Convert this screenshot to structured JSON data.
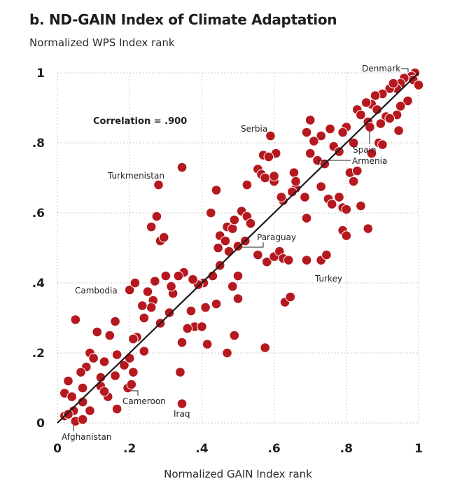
{
  "chart_data": {
    "type": "scatter",
    "title": "b. ND-GAIN Index of Climate Adaptation",
    "ylabel": "Normalized WPS Index rank",
    "xlabel": "Normalized GAIN Index rank",
    "xlim": [
      0,
      1
    ],
    "ylim": [
      0,
      1
    ],
    "grid": true,
    "x_ticks": [
      {
        "v": 0,
        "label": "0"
      },
      {
        "v": 0.2,
        "label": ".2"
      },
      {
        "v": 0.4,
        "label": ".4"
      },
      {
        "v": 0.6,
        "label": ".6"
      },
      {
        "v": 0.8,
        "label": ".8"
      },
      {
        "v": 1,
        "label": "1"
      }
    ],
    "y_ticks": [
      {
        "v": 0,
        "label": "0"
      },
      {
        "v": 0.2,
        "label": ".2"
      },
      {
        "v": 0.4,
        "label": ".4"
      },
      {
        "v": 0.6,
        "label": ".6"
      },
      {
        "v": 0.8,
        "label": ".8"
      },
      {
        "v": 1,
        "label": "1"
      }
    ],
    "correlation_text": "Correlation = .900",
    "fit_line": {
      "x": [
        0,
        1
      ],
      "y": [
        0,
        1
      ]
    },
    "point_color": "#b5191f",
    "points": [
      [
        0.99,
        1.0
      ],
      [
        0.98,
        0.99
      ],
      [
        0.985,
        0.98
      ],
      [
        1.0,
        0.965
      ],
      [
        0.96,
        0.985
      ],
      [
        0.95,
        0.97
      ],
      [
        0.94,
        0.955
      ],
      [
        0.92,
        0.955
      ],
      [
        0.93,
        0.97
      ],
      [
        0.97,
        0.92
      ],
      [
        0.9,
        0.94
      ],
      [
        0.88,
        0.935
      ],
      [
        0.87,
        0.91
      ],
      [
        0.885,
        0.895
      ],
      [
        0.855,
        0.915
      ],
      [
        0.83,
        0.895
      ],
      [
        0.95,
        0.905
      ],
      [
        0.94,
        0.88
      ],
      [
        0.91,
        0.875
      ],
      [
        0.92,
        0.87
      ],
      [
        0.895,
        0.855
      ],
      [
        0.86,
        0.86
      ],
      [
        0.865,
        0.845
      ],
      [
        0.84,
        0.88
      ],
      [
        0.945,
        0.835
      ],
      [
        0.89,
        0.8
      ],
      [
        0.9,
        0.795
      ],
      [
        0.8,
        0.845
      ],
      [
        0.79,
        0.83
      ],
      [
        0.73,
        0.82
      ],
      [
        0.755,
        0.84
      ],
      [
        0.71,
        0.805
      ],
      [
        0.7,
        0.77
      ],
      [
        0.72,
        0.75
      ],
      [
        0.765,
        0.79
      ],
      [
        0.78,
        0.775
      ],
      [
        0.82,
        0.8
      ],
      [
        0.87,
        0.77
      ],
      [
        0.74,
        0.74
      ],
      [
        0.81,
        0.715
      ],
      [
        0.73,
        0.675
      ],
      [
        0.75,
        0.64
      ],
      [
        0.76,
        0.625
      ],
      [
        0.78,
        0.645
      ],
      [
        0.79,
        0.615
      ],
      [
        0.8,
        0.61
      ],
      [
        0.84,
        0.62
      ],
      [
        0.82,
        0.69
      ],
      [
        0.83,
        0.72
      ],
      [
        0.86,
        0.555
      ],
      [
        0.79,
        0.55
      ],
      [
        0.8,
        0.535
      ],
      [
        0.69,
        0.585
      ],
      [
        0.7,
        0.865
      ],
      [
        0.69,
        0.83
      ],
      [
        0.655,
        0.715
      ],
      [
        0.66,
        0.67
      ],
      [
        0.65,
        0.66
      ],
      [
        0.625,
        0.635
      ],
      [
        0.62,
        0.645
      ],
      [
        0.6,
        0.69
      ],
      [
        0.605,
        0.77
      ],
      [
        0.555,
        0.725
      ],
      [
        0.565,
        0.71
      ],
      [
        0.575,
        0.7
      ],
      [
        0.57,
        0.765
      ],
      [
        0.585,
        0.76
      ],
      [
        0.6,
        0.705
      ],
      [
        0.59,
        0.82
      ],
      [
        0.525,
        0.68
      ],
      [
        0.47,
        0.56
      ],
      [
        0.485,
        0.555
      ],
      [
        0.49,
        0.58
      ],
      [
        0.45,
        0.535
      ],
      [
        0.465,
        0.52
      ],
      [
        0.445,
        0.5
      ],
      [
        0.475,
        0.49
      ],
      [
        0.51,
        0.605
      ],
      [
        0.525,
        0.59
      ],
      [
        0.535,
        0.57
      ],
      [
        0.5,
        0.505
      ],
      [
        0.52,
        0.52
      ],
      [
        0.44,
        0.665
      ],
      [
        0.425,
        0.6
      ],
      [
        0.555,
        0.48
      ],
      [
        0.58,
        0.46
      ],
      [
        0.6,
        0.475
      ],
      [
        0.615,
        0.49
      ],
      [
        0.625,
        0.47
      ],
      [
        0.64,
        0.465
      ],
      [
        0.73,
        0.465
      ],
      [
        0.745,
        0.48
      ],
      [
        0.5,
        0.42
      ],
      [
        0.45,
        0.45
      ],
      [
        0.43,
        0.42
      ],
      [
        0.405,
        0.4
      ],
      [
        0.39,
        0.395
      ],
      [
        0.375,
        0.41
      ],
      [
        0.35,
        0.43
      ],
      [
        0.335,
        0.42
      ],
      [
        0.3,
        0.42
      ],
      [
        0.27,
        0.405
      ],
      [
        0.25,
        0.375
      ],
      [
        0.265,
        0.35
      ],
      [
        0.26,
        0.33
      ],
      [
        0.235,
        0.335
      ],
      [
        0.24,
        0.3
      ],
      [
        0.285,
        0.285
      ],
      [
        0.31,
        0.315
      ],
      [
        0.32,
        0.37
      ],
      [
        0.315,
        0.39
      ],
      [
        0.37,
        0.32
      ],
      [
        0.38,
        0.275
      ],
      [
        0.36,
        0.27
      ],
      [
        0.4,
        0.275
      ],
      [
        0.41,
        0.33
      ],
      [
        0.345,
        0.23
      ],
      [
        0.415,
        0.225
      ],
      [
        0.44,
        0.34
      ],
      [
        0.485,
        0.39
      ],
      [
        0.49,
        0.25
      ],
      [
        0.5,
        0.355
      ],
      [
        0.47,
        0.2
      ],
      [
        0.575,
        0.215
      ],
      [
        0.63,
        0.345
      ],
      [
        0.645,
        0.36
      ],
      [
        0.34,
        0.145
      ],
      [
        0.345,
        0.055
      ],
      [
        0.2,
        0.38
      ],
      [
        0.215,
        0.4
      ],
      [
        0.28,
        0.68
      ],
      [
        0.345,
        0.73
      ],
      [
        0.275,
        0.59
      ],
      [
        0.285,
        0.52
      ],
      [
        0.295,
        0.53
      ],
      [
        0.26,
        0.56
      ],
      [
        0.05,
        0.295
      ],
      [
        0.11,
        0.26
      ],
      [
        0.16,
        0.29
      ],
      [
        0.145,
        0.25
      ],
      [
        0.22,
        0.245
      ],
      [
        0.21,
        0.24
      ],
      [
        0.24,
        0.205
      ],
      [
        0.09,
        0.2
      ],
      [
        0.1,
        0.185
      ],
      [
        0.13,
        0.175
      ],
      [
        0.185,
        0.165
      ],
      [
        0.165,
        0.195
      ],
      [
        0.2,
        0.185
      ],
      [
        0.16,
        0.135
      ],
      [
        0.21,
        0.145
      ],
      [
        0.12,
        0.13
      ],
      [
        0.08,
        0.16
      ],
      [
        0.065,
        0.145
      ],
      [
        0.03,
        0.12
      ],
      [
        0.02,
        0.085
      ],
      [
        0.04,
        0.075
      ],
      [
        0.07,
        0.1
      ],
      [
        0.12,
        0.105
      ],
      [
        0.14,
        0.075
      ],
      [
        0.13,
        0.09
      ],
      [
        0.165,
        0.04
      ],
      [
        0.09,
        0.035
      ],
      [
        0.07,
        0.06
      ],
      [
        0.045,
        0.035
      ],
      [
        0.02,
        0.02
      ],
      [
        0.03,
        0.025
      ],
      [
        0.05,
        0.005
      ],
      [
        0.07,
        0.01
      ],
      [
        0.195,
        0.1
      ],
      [
        0.205,
        0.11
      ],
      [
        0.69,
        0.465
      ],
      [
        0.66,
        0.69
      ],
      [
        0.685,
        0.645
      ]
    ],
    "annotations": [
      {
        "label": "Denmark",
        "x": 0.985,
        "y": 1.0
      },
      {
        "label": "Serbia",
        "x": 0.59,
        "y": 0.82
      },
      {
        "label": "Spain",
        "x": 0.865,
        "y": 0.85
      },
      {
        "label": "Armenia",
        "x": 0.73,
        "y": 0.735
      },
      {
        "label": "Turkmenistan",
        "x": 0.28,
        "y": 0.68
      },
      {
        "label": "Paraguay",
        "x": 0.51,
        "y": 0.505
      },
      {
        "label": "Turkey",
        "x": 0.745,
        "y": 0.445
      },
      {
        "label": "Cambodia",
        "x": 0.19,
        "y": 0.385
      },
      {
        "label": "Cameroon",
        "x": 0.195,
        "y": 0.1
      },
      {
        "label": "Iraq",
        "x": 0.345,
        "y": 0.055
      },
      {
        "label": "Afghanistan",
        "x": 0.045,
        "y": 0.005
      }
    ]
  }
}
